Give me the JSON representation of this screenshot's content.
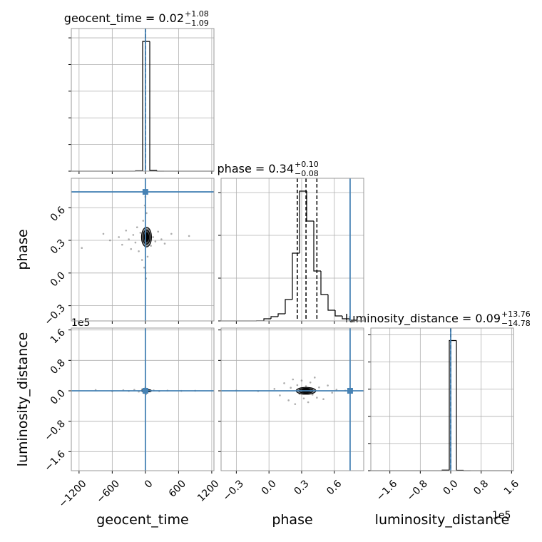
{
  "chart_data": {
    "type": "corner",
    "parameters": [
      {
        "label": "geocent_time",
        "title": "geocent_time = 0.02",
        "title_upper": "+1.08",
        "title_lower": "−1.09",
        "quantiles": [
          -1.07,
          0.02,
          1.1
        ],
        "truth": 0,
        "lim": [
          -1340,
          1240
        ],
        "ticks": [
          {
            "value": -1200,
            "label": "−1200"
          },
          {
            "value": -600,
            "label": "−600"
          },
          0,
          600,
          1200
        ],
        "bins": [
          -1340,
          -1211,
          -1082,
          -953,
          -824,
          -695,
          -566,
          -437,
          -308,
          -179,
          -50,
          79,
          208,
          337,
          466,
          595,
          724,
          853,
          982,
          1111,
          1240
        ],
        "counts": [
          0,
          0,
          0,
          0,
          0,
          0,
          0,
          0,
          0,
          3,
          973,
          6,
          0,
          0,
          0,
          0,
          0,
          0,
          0,
          0
        ],
        "hist_ylim": [
          0,
          1070
        ],
        "hist_yticks": [
          0,
          200,
          400,
          600,
          800,
          1000
        ]
      },
      {
        "label": "phase",
        "title": "phase = 0.34",
        "title_upper": "+0.10",
        "title_lower": "−0.08",
        "quantiles": [
          0.26,
          0.34,
          0.44
        ],
        "truth": 0.745,
        "lim": [
          -0.44,
          0.87
        ],
        "ticks": [
          {
            "value": -0.3,
            "label": "−0.3"
          },
          {
            "value": 0,
            "label": "0.0"
          },
          0.3,
          0.6
        ],
        "bins": [
          -0.44,
          -0.3745,
          -0.309,
          -0.2435,
          -0.178,
          -0.1125,
          -0.047,
          0.0185,
          0.084,
          0.1495,
          0.215,
          0.2805,
          0.346,
          0.4115,
          0.477,
          0.5425,
          0.608,
          0.6735,
          0.739,
          0.8045,
          0.87
        ],
        "counts": [
          0,
          0,
          0,
          0,
          0,
          1,
          15,
          30,
          50,
          150,
          475,
          910,
          700,
          350,
          185,
          75,
          35,
          15,
          5,
          0
        ],
        "hist_ylim": [
          0,
          1000
        ],
        "hist_yticks": [
          0,
          300,
          600,
          900
        ]
      },
      {
        "label": "luminosity_distance",
        "title": "luminosity_distance = 0.09",
        "title_upper": "+13.76",
        "title_lower": "−14.78",
        "quantiles": [
          -14.69,
          0.09,
          13.85
        ],
        "truth": 0,
        "lim": [
          -210000,
          165000
        ],
        "offset_label": "1e5",
        "ticks": [
          {
            "value": -160000,
            "label": "−1.6"
          },
          {
            "value": -80000,
            "label": "−0.8"
          },
          {
            "value": 0,
            "label": "0.0"
          },
          {
            "value": 80000,
            "label": "0.8"
          },
          {
            "value": 160000,
            "label": "1.6"
          }
        ],
        "bins": [
          -210000,
          -191250,
          -172500,
          -153750,
          -135000,
          -116250,
          -97500,
          -78750,
          -60000,
          -41250,
          -22500,
          -3750,
          15000,
          33750,
          52500,
          71250,
          90000,
          108750,
          127500,
          146250,
          165000
        ],
        "counts": [
          0,
          0,
          0,
          0,
          0,
          0,
          0,
          0,
          0,
          0,
          4,
          958,
          3,
          0,
          0,
          0,
          0,
          0,
          0,
          0
        ],
        "hist_ylim": [
          0,
          1050
        ],
        "hist_yticks": [
          0,
          200,
          400,
          600,
          800,
          1000
        ]
      }
    ],
    "pairs": [
      {
        "x": 0,
        "y": 1,
        "points": [
          [
            -1150,
            0.23
          ],
          [
            -760,
            0.36
          ],
          [
            -640,
            0.3
          ],
          [
            -480,
            0.33
          ],
          [
            -420,
            0.26
          ],
          [
            -350,
            0.39
          ],
          [
            -300,
            0.31
          ],
          [
            -260,
            0.22
          ],
          [
            -220,
            0.35
          ],
          [
            -180,
            0.28
          ],
          [
            -150,
            0.42
          ],
          [
            -120,
            0.2
          ],
          [
            -90,
            0.37
          ],
          [
            -60,
            0.12
          ],
          [
            -40,
            0.48
          ],
          [
            -20,
            0.05
          ],
          [
            20,
            0.55
          ],
          [
            40,
            0.15
          ],
          [
            70,
            0.4
          ],
          [
            100,
            0.25
          ],
          [
            140,
            0.33
          ],
          [
            180,
            0.29
          ],
          [
            230,
            0.38
          ],
          [
            290,
            0.31
          ],
          [
            350,
            0.27
          ],
          [
            470,
            0.36
          ],
          [
            790,
            0.34
          ],
          [
            -10,
            0.62
          ],
          [
            10,
            -0.05
          ],
          [
            0,
            0.7
          ],
          [
            5,
            0.0
          ]
        ],
        "contours": [
          [
            20,
            0.33,
            90,
            0.09
          ],
          [
            20,
            0.33,
            65,
            0.065
          ],
          [
            20,
            0.33,
            40,
            0.04
          ]
        ]
      },
      {
        "x": 0,
        "y": 2,
        "points": [
          [
            -900,
            2000
          ],
          [
            -600,
            -1000
          ],
          [
            -400,
            1500
          ],
          [
            -300,
            -500
          ],
          [
            -200,
            2500
          ],
          [
            -120,
            -2000
          ],
          [
            -60,
            4000
          ],
          [
            -20,
            -6000
          ],
          [
            0,
            9000
          ],
          [
            10,
            -9000
          ],
          [
            40,
            3000
          ],
          [
            80,
            -1500
          ],
          [
            150,
            1000
          ],
          [
            250,
            -800
          ],
          [
            400,
            600
          ],
          [
            650,
            -300
          ],
          [
            900,
            200
          ]
        ],
        "contours": [
          [
            20,
            0,
            90,
            3000
          ],
          [
            20,
            0,
            60,
            2000
          ],
          [
            20,
            0,
            35,
            1200
          ]
        ]
      },
      {
        "x": 1,
        "y": 2,
        "points": [
          [
            0.05,
            5000
          ],
          [
            0.1,
            -12000
          ],
          [
            0.14,
            20000
          ],
          [
            0.18,
            -25000
          ],
          [
            0.2,
            8000
          ],
          [
            0.22,
            30000
          ],
          [
            0.24,
            -35000
          ],
          [
            0.26,
            15000
          ],
          [
            0.28,
            -8000
          ],
          [
            0.3,
            27000
          ],
          [
            0.32,
            -20000
          ],
          [
            0.34,
            12000
          ],
          [
            0.36,
            -30000
          ],
          [
            0.38,
            22000
          ],
          [
            0.4,
            -10000
          ],
          [
            0.42,
            35000
          ],
          [
            0.44,
            -18000
          ],
          [
            0.46,
            9000
          ],
          [
            0.5,
            -22000
          ],
          [
            0.54,
            14000
          ],
          [
            0.58,
            -5000
          ],
          [
            0.62,
            3000
          ],
          [
            -0.3,
            500
          ],
          [
            -0.1,
            -800
          ],
          [
            0.7,
            400
          ]
        ],
        "contours": [
          [
            0.34,
            0,
            0.09,
            9000
          ],
          [
            0.34,
            0,
            0.065,
            6500
          ],
          [
            0.34,
            0,
            0.04,
            4000
          ]
        ]
      }
    ],
    "truth_color": "#4682b4",
    "hist_color": "#000000",
    "grid": true
  }
}
